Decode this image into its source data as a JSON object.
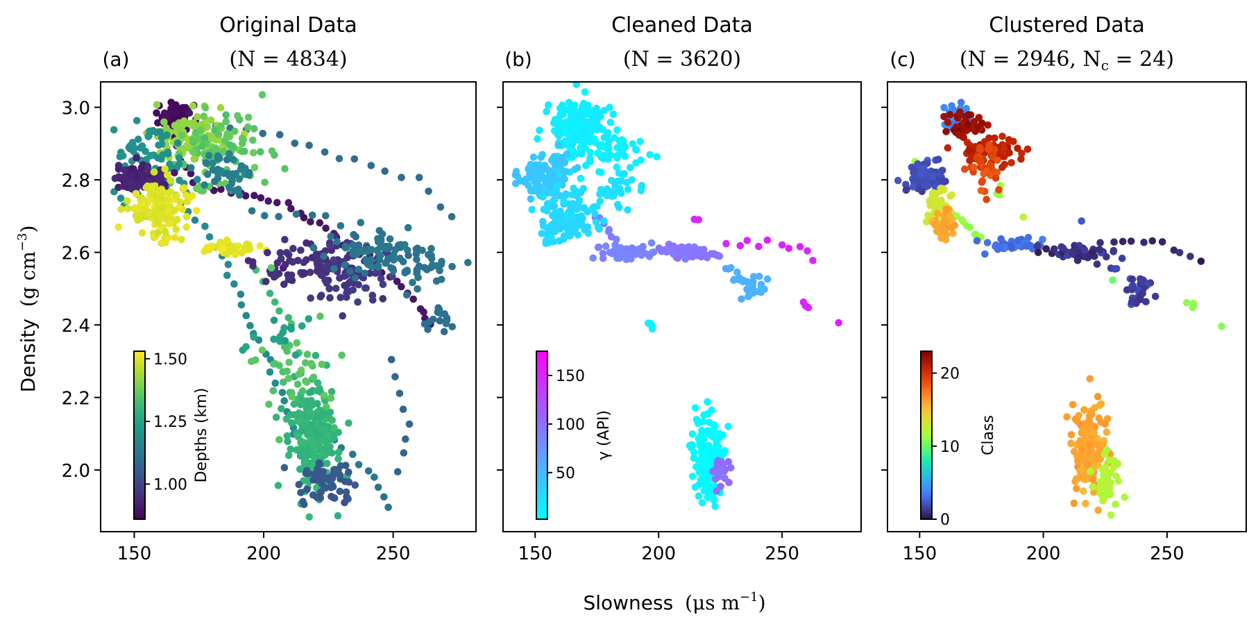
{
  "chart_data": [
    {
      "type": "scatter",
      "panel_label": "(a)",
      "title": "Original Data",
      "subtitle": "(N = 4834)",
      "xlim": [
        137,
        282
      ],
      "ylim": [
        1.83,
        3.07
      ],
      "xticks": [
        150,
        200,
        250
      ],
      "yticks": [
        2.0,
        2.2,
        2.4,
        2.6,
        2.8,
        3.0
      ],
      "ytick_labels": [
        "2.0",
        "2.2",
        "2.4",
        "2.6",
        "2.8",
        "3.0"
      ],
      "colorbar": {
        "label": "Depths (km)",
        "colormap": "viridis",
        "range": [
          0.86,
          1.53
        ],
        "ticks": [
          1.0,
          1.25,
          1.5
        ],
        "tick_labels": [
          "1.00",
          "1.25",
          "1.50"
        ]
      },
      "clusters": [
        {
          "cx": 166,
          "cy": 2.97,
          "sx": 3,
          "sy": 0.02,
          "n": 70,
          "c": 0.88
        },
        {
          "cx": 173,
          "cy": 2.92,
          "sx": 8,
          "sy": 0.03,
          "n": 120,
          "c": 1.42
        },
        {
          "cx": 183,
          "cy": 2.88,
          "sx": 9,
          "sy": 0.05,
          "n": 90,
          "c": 1.36
        },
        {
          "cx": 155,
          "cy": 2.85,
          "sx": 7,
          "sy": 0.05,
          "n": 80,
          "c": 1.2
        },
        {
          "cx": 153,
          "cy": 2.8,
          "sx": 5,
          "sy": 0.02,
          "n": 90,
          "c": 0.93
        },
        {
          "cx": 160,
          "cy": 2.72,
          "sx": 6,
          "sy": 0.04,
          "n": 130,
          "c": 1.5
        },
        {
          "cx": 186,
          "cy": 2.61,
          "sx": 5,
          "sy": 0.01,
          "n": 40,
          "c": 1.5
        },
        {
          "cx": 218,
          "cy": 2.57,
          "sx": 10,
          "sy": 0.03,
          "n": 90,
          "c": 0.95
        },
        {
          "cx": 235,
          "cy": 2.53,
          "sx": 8,
          "sy": 0.04,
          "n": 60,
          "c": 0.97
        },
        {
          "cx": 245,
          "cy": 2.6,
          "sx": 10,
          "sy": 0.03,
          "n": 80,
          "c": 1.12
        },
        {
          "cx": 262,
          "cy": 2.55,
          "sx": 4,
          "sy": 0.04,
          "n": 25,
          "c": 1.12
        },
        {
          "cx": 265,
          "cy": 2.42,
          "sx": 5,
          "sy": 0.02,
          "n": 15,
          "c": 1.1
        },
        {
          "cx": 219,
          "cy": 2.08,
          "sx": 5,
          "sy": 0.07,
          "n": 220,
          "c": 1.3
        },
        {
          "cx": 224,
          "cy": 1.97,
          "sx": 6,
          "sy": 0.03,
          "n": 60,
          "c": 1.05
        },
        {
          "cx": 212,
          "cy": 2.3,
          "sx": 7,
          "sy": 0.08,
          "n": 40,
          "c": 1.35
        },
        {
          "cx": 205,
          "cy": 2.38,
          "sx": 5,
          "sy": 0.04,
          "n": 15,
          "c": 1.25
        },
        {
          "cx": 185,
          "cy": 2.82,
          "sx": 5,
          "sy": 0.03,
          "n": 40,
          "c": 1.15
        }
      ],
      "traces": [
        {
          "pts": [
            [
              165,
              2.96
            ],
            [
              168,
              2.85
            ],
            [
              175,
              2.78
            ],
            [
              195,
              2.76
            ],
            [
              212,
              2.72
            ],
            [
              225,
              2.66
            ],
            [
              238,
              2.58
            ],
            [
              255,
              2.5
            ],
            [
              265,
              2.4
            ]
          ],
          "n": 45,
          "c": 0.9
        },
        {
          "pts": [
            [
              175,
              2.95
            ],
            [
              200,
              2.93
            ],
            [
              230,
              2.86
            ],
            [
              260,
              2.8
            ],
            [
              272,
              2.7
            ]
          ],
          "n": 18,
          "c": 1.1
        },
        {
          "pts": [
            [
              160,
              2.8
            ],
            [
              175,
              2.68
            ],
            [
              185,
              2.58
            ],
            [
              195,
              2.4
            ],
            [
              205,
              2.25
            ],
            [
              212,
              2.1
            ]
          ],
          "n": 28,
          "c": 1.18
        },
        {
          "pts": [
            [
              182,
              2.82
            ],
            [
              198,
              2.7
            ],
            [
              225,
              2.7
            ],
            [
              240,
              2.62
            ]
          ],
          "n": 12,
          "c": 1.12
        },
        {
          "pts": [
            [
              225,
              2.1
            ],
            [
              240,
              2.0
            ],
            [
              248,
              1.9
            ]
          ],
          "n": 10,
          "c": 1.12
        },
        {
          "pts": [
            [
              250,
              2.3
            ],
            [
              256,
              2.1
            ],
            [
              252,
              2.0
            ]
          ],
          "n": 8,
          "c": 1.08
        },
        {
          "pts": [
            [
              198,
              2.55
            ],
            [
              205,
              2.45
            ],
            [
              210,
              2.42
            ]
          ],
          "n": 6,
          "c": 1.32
        }
      ],
      "seed": 11
    },
    {
      "type": "scatter",
      "panel_label": "(b)",
      "title": "Cleaned Data",
      "subtitle": "(N = 3620)",
      "xlim": [
        137,
        282
      ],
      "ylim": [
        1.83,
        3.07
      ],
      "xticks": [
        150,
        200,
        250
      ],
      "colorbar": {
        "label": "γ (API)",
        "colormap": "cool",
        "range": [
          2,
          175
        ],
        "ticks": [
          50,
          100,
          150
        ],
        "tick_labels": [
          "50",
          "100",
          "150"
        ]
      },
      "clusters": [
        {
          "cx": 167,
          "cy": 2.94,
          "sx": 6,
          "sy": 0.04,
          "n": 170,
          "c": 15
        },
        {
          "cx": 180,
          "cy": 2.88,
          "sx": 7,
          "sy": 0.03,
          "n": 50,
          "c": 12
        },
        {
          "cx": 154,
          "cy": 2.8,
          "sx": 5,
          "sy": 0.03,
          "n": 110,
          "c": 40
        },
        {
          "cx": 162,
          "cy": 2.7,
          "sx": 6,
          "sy": 0.04,
          "n": 130,
          "c": 28
        },
        {
          "cx": 183,
          "cy": 2.77,
          "sx": 4,
          "sy": 0.02,
          "n": 30,
          "c": 22
        },
        {
          "cx": 186,
          "cy": 2.6,
          "sx": 6,
          "sy": 0.01,
          "n": 50,
          "c": 85
        },
        {
          "cx": 213,
          "cy": 2.6,
          "sx": 6,
          "sy": 0.01,
          "n": 60,
          "c": 95
        },
        {
          "cx": 238,
          "cy": 2.51,
          "sx": 3,
          "sy": 0.02,
          "n": 30,
          "c": 55
        },
        {
          "cx": 220,
          "cy": 2.03,
          "sx": 3,
          "sy": 0.06,
          "n": 170,
          "c": 5
        },
        {
          "cx": 226,
          "cy": 2.0,
          "sx": 2,
          "sy": 0.03,
          "n": 20,
          "c": 100
        },
        {
          "cx": 197,
          "cy": 2.4,
          "sx": 1,
          "sy": 0.005,
          "n": 6,
          "c": 10
        }
      ],
      "traces": [
        {
          "pts": [
            [
              175,
              2.7
            ],
            [
              180,
              2.66
            ],
            [
              183,
              2.62
            ]
          ],
          "n": 8,
          "c": 90
        },
        {
          "pts": [
            [
              228,
              2.62
            ],
            [
              245,
              2.63
            ],
            [
              260,
              2.6
            ],
            [
              264,
              2.58
            ]
          ],
          "n": 10,
          "c": 150
        },
        {
          "pts": [
            [
              227,
              2.55
            ],
            [
              230,
              2.56
            ]
          ],
          "n": 3,
          "c": 60
        },
        {
          "pts": [
            [
              258,
              2.46
            ],
            [
              261,
              2.45
            ]
          ],
          "n": 4,
          "c": 150
        },
        {
          "pts": [
            [
              215,
              2.69
            ],
            [
              216,
              2.68
            ]
          ],
          "n": 2,
          "c": 150
        },
        {
          "pts": [
            [
              273,
              2.4
            ],
            [
              273,
              2.4
            ]
          ],
          "n": 1,
          "c": 160
        }
      ],
      "seed": 23
    },
    {
      "type": "scatter",
      "panel_label": "(c)",
      "title": "Clustered Data",
      "subtitle": "(N = 2946, N",
      "subtitle_sub": "c",
      "subtitle_tail": " = 24)",
      "xlim": [
        137,
        282
      ],
      "ylim": [
        1.83,
        3.07
      ],
      "xticks": [
        150,
        200,
        250
      ],
      "colorbar": {
        "label": "Class",
        "colormap": "turbo",
        "range": [
          0,
          23
        ],
        "ticks": [
          0,
          10,
          20
        ],
        "tick_labels": [
          "0",
          "10",
          "20"
        ]
      },
      "clusters": [
        {
          "cx": 165,
          "cy": 2.98,
          "sx": 3,
          "sy": 0.015,
          "n": 50,
          "c": 4
        },
        {
          "cx": 168,
          "cy": 2.95,
          "sx": 4,
          "sy": 0.02,
          "n": 40,
          "c": 22
        },
        {
          "cx": 180,
          "cy": 2.88,
          "sx": 6,
          "sy": 0.02,
          "n": 60,
          "c": 21
        },
        {
          "cx": 177,
          "cy": 2.83,
          "sx": 3,
          "sy": 0.03,
          "n": 40,
          "c": 19
        },
        {
          "cx": 153,
          "cy": 2.81,
          "sx": 4,
          "sy": 0.02,
          "n": 80,
          "c": 2
        },
        {
          "cx": 158,
          "cy": 2.72,
          "sx": 3,
          "sy": 0.03,
          "n": 50,
          "c": 13
        },
        {
          "cx": 160,
          "cy": 2.67,
          "sx": 2,
          "sy": 0.02,
          "n": 30,
          "c": 16
        },
        {
          "cx": 188,
          "cy": 2.62,
          "sx": 6,
          "sy": 0.01,
          "n": 40,
          "c": 3
        },
        {
          "cx": 215,
          "cy": 2.6,
          "sx": 7,
          "sy": 0.01,
          "n": 60,
          "c": 1
        },
        {
          "cx": 238,
          "cy": 2.5,
          "sx": 3,
          "sy": 0.02,
          "n": 30,
          "c": 1.5
        },
        {
          "cx": 218,
          "cy": 2.05,
          "sx": 3,
          "sy": 0.06,
          "n": 170,
          "c": 16
        },
        {
          "cx": 226,
          "cy": 1.97,
          "sx": 3,
          "sy": 0.04,
          "n": 40,
          "c": 12
        }
      ],
      "traces": [
        {
          "pts": [
            [
              160,
              2.72
            ],
            [
              168,
              2.68
            ],
            [
              175,
              2.64
            ]
          ],
          "n": 12,
          "c": 11
        },
        {
          "pts": [
            [
              182,
              2.78
            ],
            [
              183,
              2.75
            ]
          ],
          "n": 4,
          "c": 11
        },
        {
          "pts": [
            [
              228,
              2.63
            ],
            [
              245,
              2.63
            ],
            [
              264,
              2.58
            ]
          ],
          "n": 10,
          "c": 0.5
        },
        {
          "pts": [
            [
              227,
              2.55
            ],
            [
              230,
              2.56
            ]
          ],
          "n": 3,
          "c": 2
        },
        {
          "pts": [
            [
              259,
              2.46
            ],
            [
              261,
              2.45
            ]
          ],
          "n": 4,
          "c": 11
        },
        {
          "pts": [
            [
              216,
              2.69
            ],
            [
              216,
              2.68
            ]
          ],
          "n": 1,
          "c": 2
        },
        {
          "pts": [
            [
              192,
              2.7
            ],
            [
              192,
              2.7
            ]
          ],
          "n": 1,
          "c": 12
        },
        {
          "pts": [
            [
              148,
              2.85
            ],
            [
              150,
              2.84
            ]
          ],
          "n": 3,
          "c": 12
        },
        {
          "pts": [
            [
              273,
              2.4
            ],
            [
              273,
              2.4
            ]
          ],
          "n": 1,
          "c": 11
        },
        {
          "pts": [
            [
              228,
              2.53
            ],
            [
              228,
              2.53
            ]
          ],
          "n": 1,
          "c": 10
        }
      ],
      "seed": 37
    }
  ],
  "figure": {
    "ylabel": "Density",
    "ylabel_unit": "(g cm",
    "ylabel_unit_sup": "−3",
    "ylabel_unit_tail": ")",
    "xlabel": "Slowness",
    "xlabel_unit": "(μs m",
    "xlabel_unit_sup": "−1",
    "xlabel_unit_tail": ")",
    "marker_color_default": "#000000"
  }
}
